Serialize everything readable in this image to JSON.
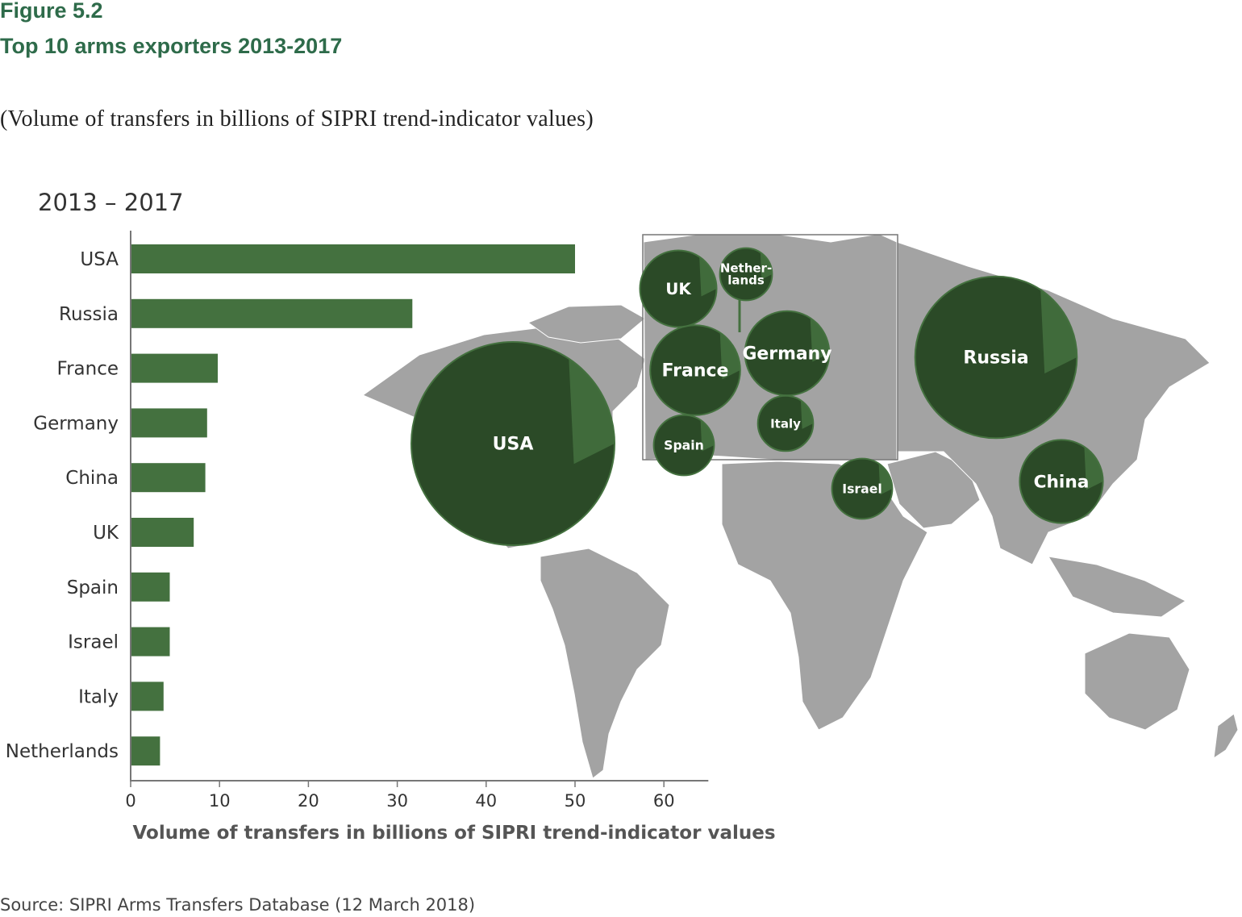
{
  "header": {
    "figure_label": "Figure 5.2",
    "title": "Top 10 arms exporters 2013-2017",
    "subtitle": "(Volume of transfers in billions of SIPRI trend-indicator values)",
    "period_label": "2013 – 2017"
  },
  "source": "Source: SIPRI Arms Transfers Database (12 March 2018)",
  "colors": {
    "bar": "#44713f",
    "bubble_light": "#44713f",
    "bubble_dark": "#2b4a27",
    "map_land": "#a3a3a3",
    "title_green": "#2e6b4a"
  },
  "chart_data": {
    "type": "bar",
    "orientation": "horizontal",
    "categories": [
      "USA",
      "Russia",
      "France",
      "Germany",
      "China",
      "UK",
      "Spain",
      "Israel",
      "Italy",
      "Netherlands"
    ],
    "values": [
      50,
      31.7,
      9.8,
      8.6,
      8.4,
      7.1,
      4.4,
      4.4,
      3.7,
      3.3
    ],
    "xlabel": "Volume of transfers in billions of SIPRI trend-indicator values",
    "ylabel": "",
    "xlim": [
      0,
      65
    ],
    "xticks": [
      0,
      10,
      20,
      30,
      40,
      50,
      60
    ],
    "grid": false,
    "map_bubbles": [
      {
        "country": "USA",
        "label": "USA"
      },
      {
        "country": "Russia",
        "label": "Russia"
      },
      {
        "country": "France",
        "label": "France"
      },
      {
        "country": "Germany",
        "label": "Germany"
      },
      {
        "country": "China",
        "label": "China"
      },
      {
        "country": "UK",
        "label": "UK"
      },
      {
        "country": "Spain",
        "label": "Spain"
      },
      {
        "country": "Israel",
        "label": "Israel"
      },
      {
        "country": "Italy",
        "label": "Italy"
      },
      {
        "country": "Netherlands",
        "label": "Nether-lands"
      }
    ]
  }
}
